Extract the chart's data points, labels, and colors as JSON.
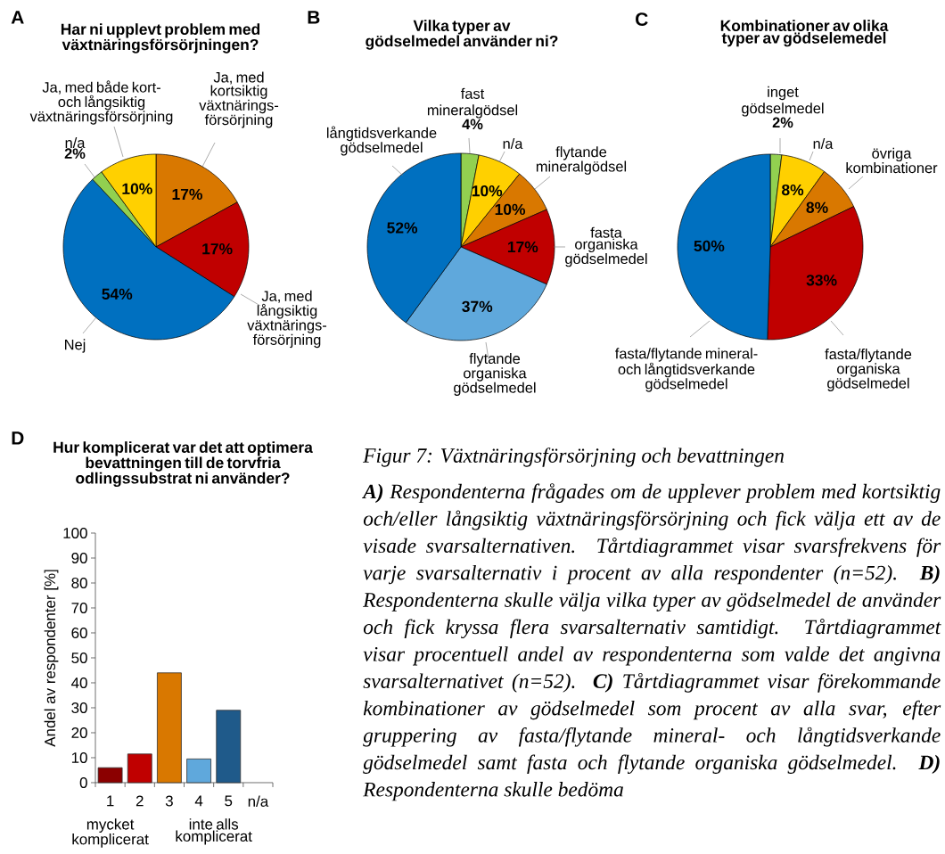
{
  "chart_data": [
    {
      "type": "pie",
      "title": "Har ni upplevt problem med växtnäringsförsörjningen?",
      "annotations": [
        "A"
      ],
      "categories": [
        "Ja, med kortsiktig växtnärings-försörjning",
        "Ja, med långsiktig växtnärings-försörjning",
        "Nej",
        "n/a",
        "Ja, med både kort- och långsiktig växtnäringsförsörjning"
      ],
      "values": [
        17,
        17,
        54,
        2,
        10
      ],
      "value_labels": [
        "17%",
        "17%",
        "54%",
        "2%",
        "10%"
      ],
      "colors": [
        "#d97800",
        "#c00000",
        "#0070c0",
        "#92d050",
        "#ffd000"
      ]
    },
    {
      "type": "pie",
      "title": "Vilka typer av gödselmedel använder ni?",
      "annotations": [
        "B"
      ],
      "categories": [
        "fast mineralgödsel",
        "n/a",
        "flytande mineralgödsel",
        "fasta organiska gödselmedel",
        "flytande organiska gödselmedel",
        "långtidsverkande gödselmedel"
      ],
      "values": [
        4,
        10,
        10,
        17,
        37,
        52
      ],
      "value_labels": [
        "4%",
        "10%",
        "10%",
        "17%",
        "37%",
        "52%"
      ],
      "colors": [
        "#92d050",
        "#ffd000",
        "#d97800",
        "#c00000",
        "#5fa8dc",
        "#0070c0"
      ]
    },
    {
      "type": "pie",
      "title": "Kombinationer av olika typer av gödselemedel",
      "annotations": [
        "C"
      ],
      "categories": [
        "inget gödselmedel",
        "n/a",
        "övriga kombinationer",
        "fasta/flytande organiska gödselmedel",
        "fasta/flytande mineral- och långtidsverkande gödselmedel"
      ],
      "values": [
        2,
        8,
        8,
        33,
        50
      ],
      "value_labels": [
        "2%",
        "8%",
        "8%",
        "33%",
        "50%"
      ],
      "colors": [
        "#92d050",
        "#ffd000",
        "#d97800",
        "#c00000",
        "#0070c0"
      ]
    },
    {
      "type": "bar",
      "title": "Hur komplicerat var det att optimera bevattningen till de torvfria odlingssubstrat ni använder?",
      "annotations": [
        "D",
        "mycket komplicerat",
        "inte alls komplicerat"
      ],
      "ylabel": "Andel av respondenter [%]",
      "categories": [
        "1",
        "2",
        "3",
        "4",
        "5",
        "n/a"
      ],
      "values": [
        6,
        11.5,
        44,
        9.5,
        29,
        null
      ],
      "colors": [
        "#8b0000",
        "#c00000",
        "#d97800",
        "#5fa8dc",
        "#1f5a8a",
        null
      ],
      "ylim": [
        0,
        100
      ],
      "yticks": [
        0,
        10,
        20,
        30,
        40,
        50,
        60,
        70,
        80,
        90,
        100
      ]
    },
    {
      "type": "other",
      "title": "Figur 7: Växtnäringsförsörjning och bevattningen",
      "annotations": [
        "**A)** Respondenterna frågades om de upplever problem med kortsiktig och/eller långsiktig växtnäringsförsörjning och fick välja ett av de visade svarsalternativen. Tårtdiagrammet visar svarsfrekvens för varje svarsalternativ i procent av alla respondenter (n=52). **B)** Respondenterna skulle välja vilka typer av gödselmedel de använder och fick kryssa flera svarsalternativ samtidigt. Tårtdiagrammet visar procentuell andel av respondenterna som valde det angivna svarsalternativet (n=52). **C)** Tårtdiagrammet visar förekommande kombinationer av gödselmedel som procent av alla svar, efter gruppering av fasta/flytande mineral- och långtidsverkande gödselmedel samt fasta och flytande organiska gödselmedel. **D)** Respondenterna skulle bedöma"
      ]
    }
  ]
}
